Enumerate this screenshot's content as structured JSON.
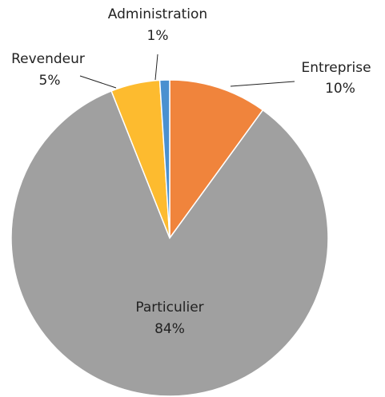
{
  "chart_data": {
    "type": "pie",
    "categories": [
      "Entreprise",
      "Particulier",
      "Revendeur",
      "Administration"
    ],
    "values": [
      10,
      84,
      5,
      1
    ],
    "value_labels": [
      "10%",
      "84%",
      "5%",
      "1%"
    ],
    "colors": [
      "#f0843c",
      "#a0a0a0",
      "#fdbb2f",
      "#4a90d0"
    ]
  }
}
